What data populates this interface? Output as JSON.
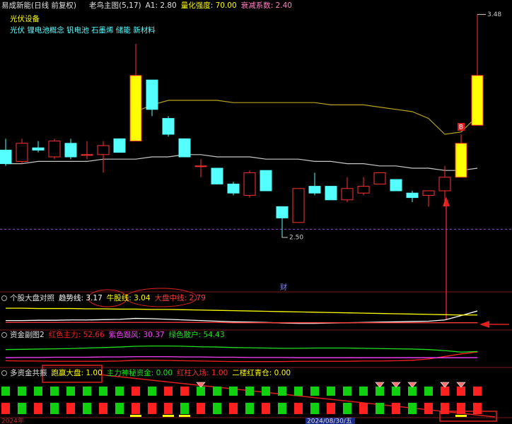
{
  "header": {
    "stock": "易成新能(日线 前复权)",
    "indicator": "老鸟主图(5,17)",
    "params": [
      "A1: 2.80",
      "量化强度: 70.00",
      "衰减系数: 2.40"
    ],
    "industry": "光伏设备",
    "concepts": "光伏 锂电池概念 钒电池 石墨烯 储能 新材料"
  },
  "chart_data": [
    {
      "type": "candlestick",
      "open": [
        2.88,
        2.83,
        2.89,
        2.85,
        2.91,
        2.86,
        2.86,
        2.93,
        2.92,
        3.19,
        3.02,
        2.93,
        2.81,
        2.8,
        2.73,
        2.68,
        2.79,
        2.63,
        2.56,
        2.72,
        2.72,
        2.66,
        2.69,
        2.73,
        2.75,
        2.69,
        2.68,
        2.7,
        2.76,
        2.99
      ],
      "high": [
        2.93,
        2.93,
        2.92,
        2.93,
        2.93,
        2.92,
        2.92,
        2.93,
        3.35,
        3.19,
        3.03,
        2.93,
        2.84,
        2.8,
        2.74,
        2.79,
        2.79,
        2.63,
        2.71,
        2.78,
        2.72,
        2.76,
        2.76,
        2.78,
        2.75,
        2.7,
        2.7,
        2.81,
        2.95,
        3.48
      ],
      "low": [
        2.81,
        2.82,
        2.87,
        2.84,
        2.84,
        2.84,
        2.78,
        2.87,
        2.92,
        3.03,
        2.94,
        2.85,
        2.76,
        2.73,
        2.68,
        2.67,
        2.7,
        2.5,
        2.56,
        2.68,
        2.66,
        2.65,
        2.68,
        2.73,
        2.7,
        2.65,
        2.63,
        2.63,
        2.76,
        2.99
      ],
      "close": [
        2.82,
        2.91,
        2.88,
        2.92,
        2.85,
        2.86,
        2.9,
        2.87,
        3.21,
        3.06,
        2.95,
        2.85,
        2.81,
        2.73,
        2.69,
        2.78,
        2.7,
        2.58,
        2.71,
        2.69,
        2.66,
        2.71,
        2.72,
        2.78,
        2.7,
        2.67,
        2.7,
        2.76,
        2.91,
        3.21
      ],
      "up_color": "#ff3232",
      "down_color": "#54ffff",
      "limit_color": "#ffff00",
      "limit_up": [
        8,
        28,
        29
      ],
      "series": [
        {
          "color": "#b8a21e",
          "values": [
            null,
            null,
            null,
            null,
            null,
            null,
            null,
            null,
            3.05,
            3.08,
            3.1,
            3.1,
            3.1,
            3.1,
            3.09,
            3.09,
            3.09,
            3.09,
            3.09,
            3.09,
            3.08,
            3.08,
            3.08,
            3.07,
            3.06,
            3.05,
            3.02,
            2.95,
            2.96,
            3.03
          ]
        },
        {
          "color": "#c8c8c8",
          "values": [
            2.82,
            2.82,
            2.83,
            2.83,
            2.83,
            2.83,
            2.84,
            2.84,
            2.84,
            2.85,
            2.85,
            2.86,
            2.86,
            2.85,
            2.85,
            2.85,
            2.84,
            2.84,
            2.84,
            2.83,
            2.83,
            2.82,
            2.82,
            2.81,
            2.81,
            2.8,
            2.8,
            2.79,
            2.79,
            2.8
          ]
        }
      ],
      "dashed_level": 2.53,
      "max_label": "3.48",
      "min_label": "2.50",
      "buy_signal": "B",
      "buy_signal_index": 28,
      "event_marker": "财",
      "ylim": [
        2.3,
        3.5
      ]
    },
    {
      "type": "line",
      "title": "个股大盘对照",
      "ylim": [
        2.6,
        3.4
      ],
      "series": [
        {
          "name": "趋势线: 3.17",
          "color": "#ffffff",
          "values": [
            2.86,
            2.86,
            2.87,
            2.87,
            2.88,
            2.88,
            2.89,
            2.9,
            2.93,
            2.92,
            2.9,
            2.88,
            2.86,
            2.84,
            2.82,
            2.81,
            2.8,
            2.78,
            2.77,
            2.77,
            2.78,
            2.79,
            2.8,
            2.81,
            2.82,
            2.83,
            2.84,
            2.88,
            3.02,
            3.17
          ]
        },
        {
          "name": "牛股线: 3.04",
          "color": "#ffff00",
          "values": [
            3.26,
            3.26,
            3.25,
            3.25,
            3.25,
            3.24,
            3.24,
            3.23,
            3.23,
            3.22,
            3.22,
            3.21,
            3.2,
            3.19,
            3.18,
            3.17,
            3.16,
            3.15,
            3.14,
            3.13,
            3.12,
            3.11,
            3.1,
            3.09,
            3.08,
            3.07,
            3.06,
            3.05,
            3.04,
            3.04
          ]
        },
        {
          "name": "大盘中线: 2.79",
          "color": "#ff3c3c",
          "values": [
            2.8,
            2.8,
            2.8,
            2.8,
            2.8,
            2.8,
            2.8,
            2.8,
            2.8,
            2.8,
            2.8,
            2.8,
            2.8,
            2.8,
            2.79,
            2.79,
            2.79,
            2.79,
            2.79,
            2.79,
            2.79,
            2.79,
            2.79,
            2.79,
            2.79,
            2.79,
            2.79,
            2.79,
            2.79,
            2.79
          ]
        }
      ]
    },
    {
      "type": "line",
      "title": "资金副图2",
      "ylim": [
        0,
        100
      ],
      "series": [
        {
          "name": "红色主力: 52.66",
          "color": "#ff2020",
          "values": [
            18,
            17,
            17,
            16,
            16,
            16,
            16,
            17,
            20,
            20,
            19,
            18,
            17,
            16,
            15,
            15,
            15,
            15,
            16,
            16,
            16,
            16,
            17,
            17,
            18,
            20,
            25,
            35,
            45,
            52.66
          ]
        },
        {
          "name": "紫色跟风: 30.37",
          "color": "#ff40ff",
          "values": [
            30,
            31,
            31,
            32,
            32,
            32,
            33,
            33,
            34,
            34,
            34,
            33,
            33,
            32,
            32,
            31,
            31,
            31,
            30,
            30,
            30,
            30,
            30,
            30,
            30,
            30,
            30,
            30,
            30,
            30.37
          ]
        },
        {
          "name": "绿色散户: 54.43",
          "color": "#20e020",
          "values": [
            62,
            63,
            64,
            65,
            66,
            68,
            70,
            72,
            75,
            76,
            76,
            75,
            73,
            72,
            70,
            69,
            68,
            67,
            67,
            68,
            68,
            68,
            67,
            66,
            65,
            64,
            62,
            58,
            52,
            54.43
          ]
        }
      ]
    },
    {
      "type": "signal_grid",
      "title": "多资金共振",
      "on_color": "#ff2020",
      "off_color": "#10d010",
      "series": [
        {
          "name": "跑赢大盘: 1.00",
          "color": "#ffff00",
          "values": [
            0,
            0,
            0,
            0,
            0,
            0,
            0,
            0,
            1,
            0,
            1,
            1,
            0,
            0,
            0,
            0,
            0,
            0,
            0,
            0,
            0,
            0,
            0,
            0,
            0,
            0,
            0,
            1,
            1,
            1
          ]
        },
        {
          "name": "主力神秘资金: 0.00",
          "color": "#20e020",
          "values": [
            0,
            0,
            0,
            0,
            0,
            0,
            0,
            0,
            0,
            0,
            0,
            0,
            1,
            0,
            0,
            0,
            0,
            0,
            0,
            0,
            0,
            0,
            0,
            1,
            1,
            1,
            0,
            1,
            1,
            0
          ]
        },
        {
          "name": "红柱入场: 1.00",
          "color": "#ff3030",
          "values": [
            1,
            0,
            1,
            0,
            1,
            0,
            1,
            0,
            1,
            1,
            1,
            0,
            1,
            0,
            1,
            0,
            1,
            0,
            1,
            0,
            1,
            0,
            1,
            0,
            1,
            0,
            1,
            1,
            1,
            1
          ]
        },
        {
          "name": "二楼红青仓: 0.00",
          "color": "#ffff00",
          "values": [
            0,
            0,
            0,
            0,
            0,
            0,
            0,
            0,
            1,
            0,
            1,
            1,
            0,
            0,
            0,
            0,
            0,
            0,
            0,
            0,
            0,
            0,
            0,
            0,
            0,
            0,
            0,
            0,
            1,
            0
          ]
        }
      ]
    }
  ],
  "footer": {
    "year": "2024年",
    "date": "2024/08/30/五"
  }
}
